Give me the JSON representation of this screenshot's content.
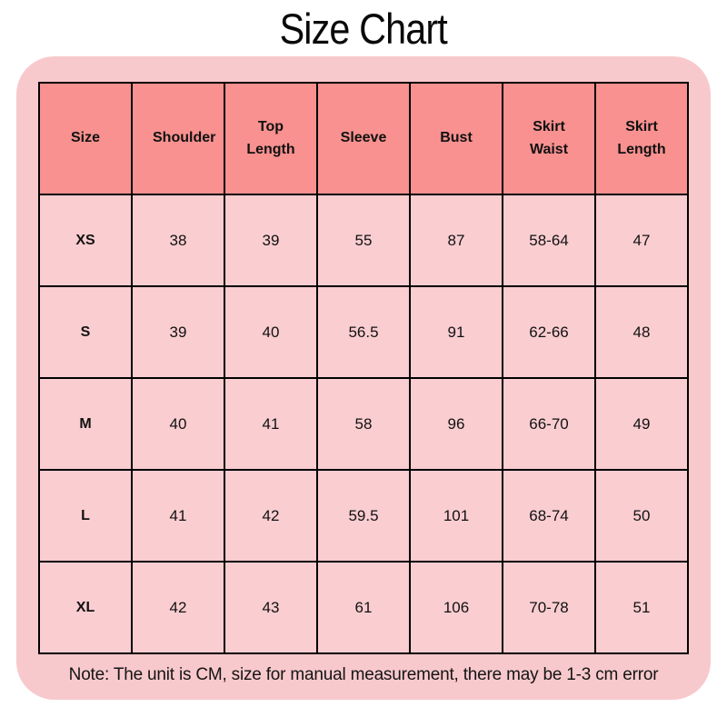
{
  "page": {
    "title": "Size Chart",
    "note": "Note: The unit is CM, size for manual measurement, there may be 1-3 cm error"
  },
  "colors": {
    "card_background": "#f8c9cc",
    "header_background": "#f8918f",
    "cell_background": "#facdd1",
    "border": "#000000",
    "text": "#111111"
  },
  "chart_data": {
    "type": "table",
    "title": "Size Chart",
    "unit": "CM",
    "columns": [
      "Size",
      "Shoulder",
      "Top Length",
      "Sleeve",
      "Bust",
      "Skirt Waist",
      "Skirt Length"
    ],
    "rows": [
      [
        "XS",
        "38",
        "39",
        "55",
        "87",
        "58-64",
        "47"
      ],
      [
        "S",
        "39",
        "40",
        "56.5",
        "91",
        "62-66",
        "48"
      ],
      [
        "M",
        "40",
        "41",
        "58",
        "96",
        "66-70",
        "49"
      ],
      [
        "L",
        "41",
        "42",
        "59.5",
        "101",
        "68-74",
        "50"
      ],
      [
        "XL",
        "42",
        "43",
        "61",
        "106",
        "70-78",
        "51"
      ]
    ],
    "note": "Note: The unit is CM, size for manual measurement, there may be 1-3 cm error"
  }
}
